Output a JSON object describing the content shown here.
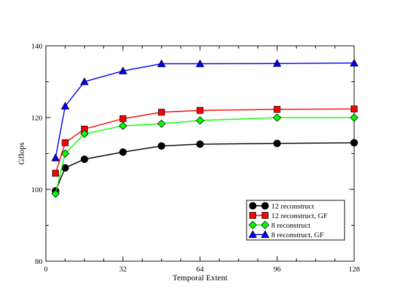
{
  "chart_data": {
    "type": "line",
    "title": "",
    "xlabel": "Temporal Extent",
    "ylabel": "Gflops",
    "xlim": [
      0,
      128
    ],
    "ylim": [
      80,
      140
    ],
    "xticks": [
      0,
      32,
      64,
      96,
      128
    ],
    "yticks": [
      80,
      100,
      120,
      140
    ],
    "grid": false,
    "legend_position": "bottom-right",
    "series": [
      {
        "name": "12 reconstruct",
        "color": "#000000",
        "marker": "circle",
        "x": [
          4,
          8,
          16,
          32,
          48,
          64,
          96,
          128
        ],
        "y": [
          99.6,
          106.0,
          108.4,
          110.4,
          112.1,
          112.6,
          112.8,
          113.0
        ]
      },
      {
        "name": "12 reconstruct, GF",
        "color": "#ff0000",
        "marker": "square",
        "x": [
          4,
          8,
          16,
          32,
          48,
          64,
          96,
          128
        ],
        "y": [
          104.5,
          113.0,
          116.8,
          119.7,
          121.5,
          122.0,
          122.3,
          122.4
        ]
      },
      {
        "name": "8 reconstruct",
        "color": "#00ff00",
        "marker": "diamond",
        "x": [
          4,
          8,
          16,
          32,
          48,
          64,
          96,
          128
        ],
        "y": [
          98.8,
          110.0,
          115.5,
          117.7,
          118.3,
          119.2,
          120.0,
          120.0
        ]
      },
      {
        "name": "8 reconstruct, GF",
        "color": "#0000ff",
        "marker": "triangle",
        "x": [
          4,
          8,
          16,
          32,
          48,
          64,
          96,
          128
        ],
        "y": [
          108.8,
          123.2,
          130.0,
          133.0,
          135.0,
          135.0,
          135.1,
          135.2
        ]
      }
    ]
  }
}
